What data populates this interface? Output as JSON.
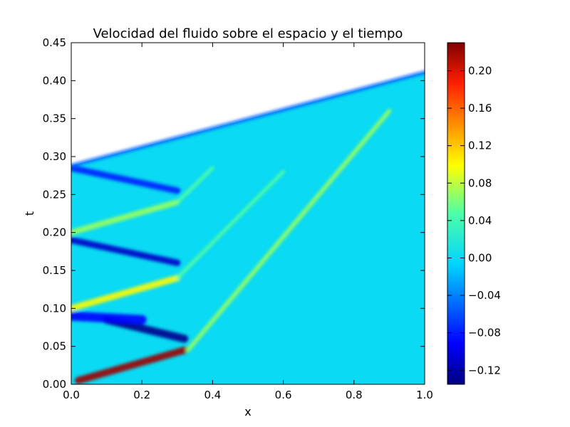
{
  "chart_data": {
    "type": "heatmap",
    "title": "Velocidad del fluido sobre el espacio y el tiempo",
    "xlabel": "x",
    "ylabel": "t",
    "xlim": [
      0.0,
      1.0
    ],
    "ylim": [
      0.0,
      0.45
    ],
    "x_ticks": [
      "0.0",
      "0.2",
      "0.4",
      "0.6",
      "0.8",
      "1.0"
    ],
    "y_ticks": [
      "0.00",
      "0.05",
      "0.10",
      "0.15",
      "0.20",
      "0.25",
      "0.30",
      "0.35",
      "0.40",
      "0.45"
    ],
    "colorbar": {
      "colormap": "jet",
      "range": [
        -0.135,
        0.23
      ],
      "ticks": [
        "0.20",
        "0.16",
        "0.12",
        "0.08",
        "0.04",
        "0.00",
        "−0.04",
        "−0.08",
        "−0.12"
      ]
    },
    "domain_top_boundary": [
      [
        0.0,
        0.288
      ],
      [
        1.0,
        0.411
      ]
    ],
    "background_value": 0.0,
    "features": [
      {
        "desc": "strong positive front",
        "value": 0.22,
        "from": [
          0.02,
          0.005
        ],
        "to": [
          0.32,
          0.045
        ]
      },
      {
        "desc": "main rightward wave",
        "value": 0.07,
        "from": [
          0.33,
          0.045
        ],
        "to": [
          0.9,
          0.36
        ]
      },
      {
        "desc": "negative band",
        "value": -0.13,
        "from": [
          0.1,
          0.085
        ],
        "to": [
          0.32,
          0.06
        ]
      },
      {
        "desc": "negative blotches",
        "value": -0.09,
        "from": [
          0.0,
          0.09
        ],
        "to": [
          0.2,
          0.085
        ]
      },
      {
        "desc": "positive band",
        "value": 0.1,
        "from": [
          0.0,
          0.1
        ],
        "to": [
          0.3,
          0.14
        ]
      },
      {
        "desc": "secondary wave",
        "value": 0.05,
        "from": [
          0.3,
          0.14
        ],
        "to": [
          0.6,
          0.28
        ]
      },
      {
        "desc": "negative band",
        "value": -0.11,
        "from": [
          0.0,
          0.19
        ],
        "to": [
          0.3,
          0.16
        ]
      },
      {
        "desc": "positive band",
        "value": 0.07,
        "from": [
          0.0,
          0.2
        ],
        "to": [
          0.3,
          0.24
        ]
      },
      {
        "desc": "tertiary wave",
        "value": 0.05,
        "from": [
          0.3,
          0.24
        ],
        "to": [
          0.4,
          0.285
        ]
      },
      {
        "desc": "negative band",
        "value": -0.08,
        "from": [
          0.0,
          0.285
        ],
        "to": [
          0.3,
          0.255
        ]
      },
      {
        "desc": "negative top edge",
        "value": -0.05,
        "from": [
          0.0,
          0.288
        ],
        "to": [
          1.0,
          0.411
        ]
      }
    ]
  }
}
